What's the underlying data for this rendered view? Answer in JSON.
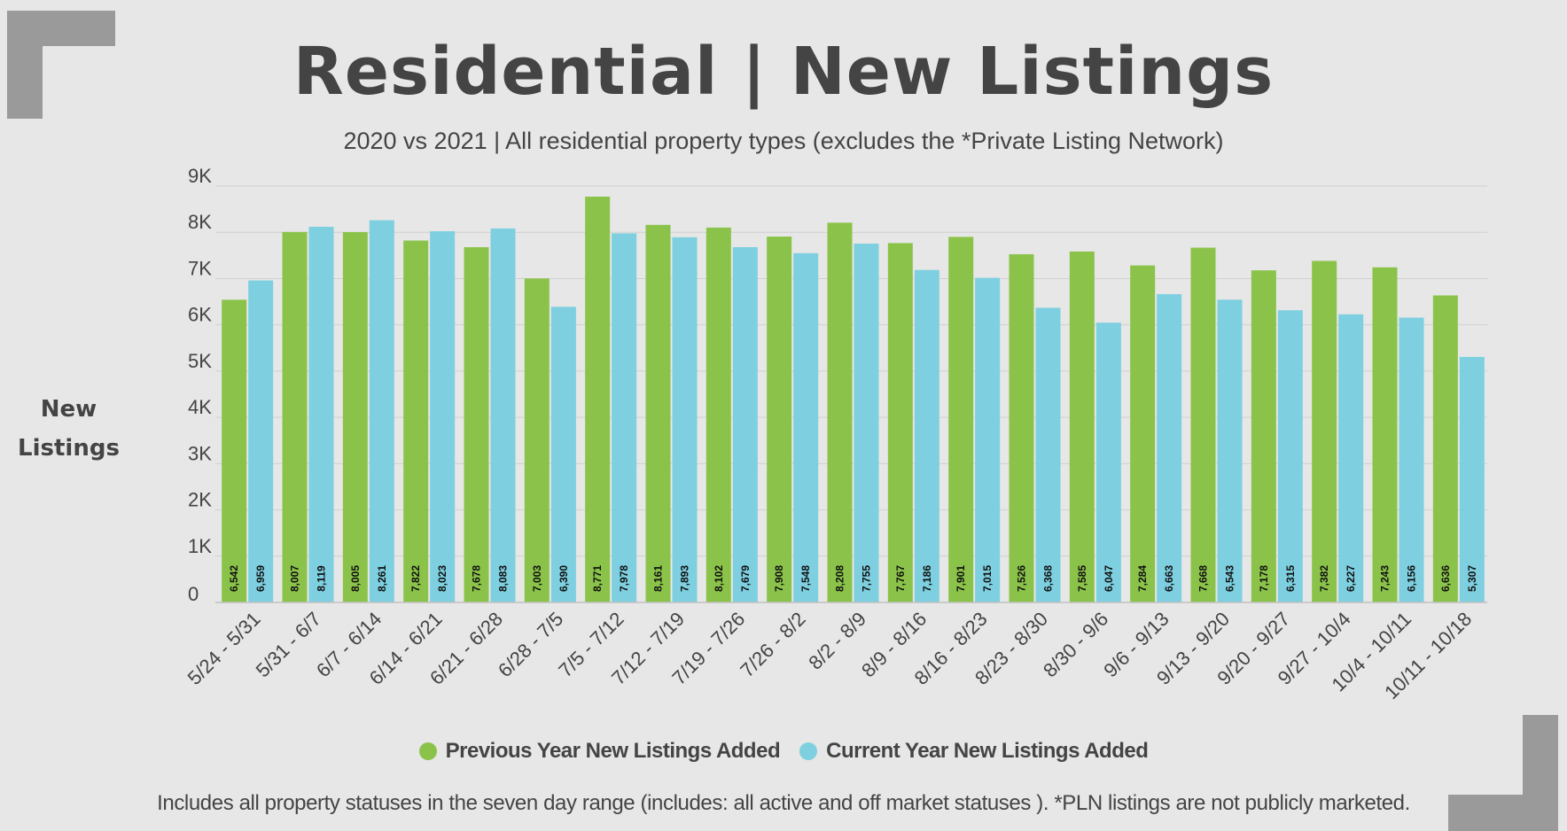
{
  "title": "Residential | New Listings",
  "subtitle": "2020 vs 2021 | All residential property types (excludes the *Private Listing Network)",
  "footnote": "Includes all property statuses in the seven day range (includes:  all active and off market statuses ).  *PLN listings are not publicly marketed.",
  "colors": {
    "background": "#e6e7e6",
    "previous": "#8bc34a",
    "current": "#7ecfe0",
    "text": "#444444",
    "corner": "#9a9a9a",
    "grid": "#cfd0cf"
  },
  "chart_data": {
    "type": "bar",
    "title": "Residential | New Listings",
    "ylabel": "New Listings",
    "xlabel": "",
    "ylim": [
      0,
      9000
    ],
    "yticks": [
      0,
      1000,
      2000,
      3000,
      4000,
      5000,
      6000,
      7000,
      8000,
      9000
    ],
    "ytick_labels": [
      "0",
      "1K",
      "2K",
      "3K",
      "4K",
      "5K",
      "6K",
      "7K",
      "8K",
      "9K"
    ],
    "grid": true,
    "legend_position": "bottom",
    "categories": [
      "5/24 - 5/31",
      "5/31 - 6/7",
      "6/7 - 6/14",
      "6/14 - 6/21",
      "6/21 - 6/28",
      "6/28 - 7/5",
      "7/5 - 7/12",
      "7/12 - 7/19",
      "7/19 - 7/26",
      "7/26 - 8/2",
      "8/2 - 8/9",
      "8/9 - 8/16",
      "8/16 - 8/23",
      "8/23 - 8/30",
      "8/30 - 9/6",
      "9/6 - 9/13",
      "9/13 - 9/20",
      "9/20 - 9/27",
      "9/27 - 10/4",
      "10/4 - 10/11",
      "10/11 - 10/18"
    ],
    "series": [
      {
        "name": "Previous Year New Listings Added",
        "color": "#8bc34a",
        "values": [
          6542,
          8007,
          8005,
          7822,
          7678,
          7003,
          8771,
          8161,
          8102,
          7908,
          8208,
          7767,
          7901,
          7526,
          7585,
          7284,
          7668,
          7178,
          7382,
          7243,
          6636
        ],
        "labels": [
          "6,542",
          "8,007",
          "8,005",
          "7,822",
          "7,678",
          "7,003",
          "8,771",
          "8,161",
          "8,102",
          "7,908",
          "8,208",
          "7,767",
          "7,901",
          "7,526",
          "7,585",
          "7,284",
          "7,668",
          "7,178",
          "7,382",
          "7,243",
          "6,636"
        ]
      },
      {
        "name": "Current Year New Listings Added",
        "color": "#7ecfe0",
        "values": [
          6959,
          8119,
          8261,
          8023,
          8083,
          6390,
          7978,
          7893,
          7679,
          7548,
          7755,
          7186,
          7015,
          6368,
          6047,
          6663,
          6543,
          6315,
          6227,
          6156,
          5307
        ],
        "labels": [
          "6,959",
          "8,119",
          "8,261",
          "8,023",
          "8,083",
          "6,390",
          "7,978",
          "7,893",
          "7,679",
          "7,548",
          "7,755",
          "7,186",
          "7,015",
          "6,368",
          "6,047",
          "6,663",
          "6,543",
          "6,315",
          "6,227",
          "6,156",
          "5,307"
        ]
      }
    ]
  }
}
